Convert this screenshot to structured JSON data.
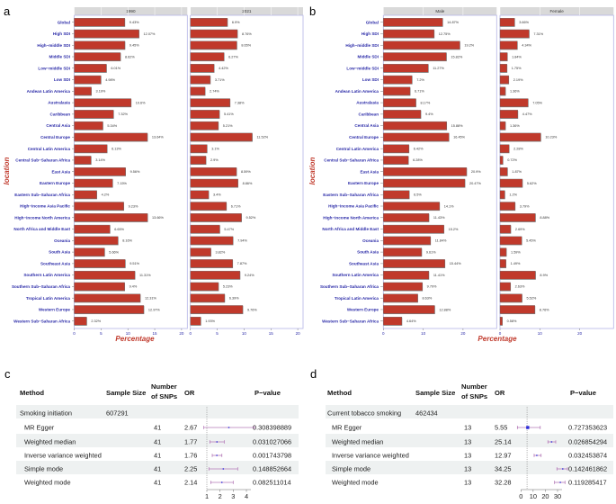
{
  "chart_data": [
    {
      "panel": "a",
      "type": "bar",
      "orientation": "horizontal",
      "facets": [
        "1990",
        "2021"
      ],
      "xlabel": "Percentage",
      "ylabel": "location",
      "xlim": [
        0,
        21
      ],
      "xticks": [
        0,
        5,
        10,
        15,
        20
      ],
      "bar_color": "#c0392b",
      "categories": [
        "Global",
        "High SDI",
        "High−middle SDI",
        "Middle SDI",
        "Low−middle SDI",
        "Low SDI",
        "Andean Latin America",
        "Australasia",
        "Caribbean",
        "Central Asia",
        "Central Europe",
        "Central Latin America",
        "Central Sub−Saharan Africa",
        "East Asia",
        "Eastern Europe",
        "Eastern Sub−Saharan Africa",
        "High−income Asia Pacific",
        "High−income North America",
        "North Africa and Middle East",
        "Oceania",
        "South Asia",
        "Southeast Asia",
        "Southern Latin America",
        "Southern Sub−Saharan Africa",
        "Tropical Latin America",
        "Western Europe",
        "Western Sub−Saharan Africa"
      ],
      "series": [
        {
          "name": "1990",
          "values": [
            9.43,
            12.07,
            9.45,
            8.62,
            6.01,
            4.98,
            3.19,
            10.6,
            7.32,
            5.34,
            13.64,
            6.13,
            3.14,
            9.56,
            7.15,
            4.2,
            9.23,
            13.66,
            6.65,
            8.16,
            5.66,
            9.51,
            11.31,
            9.4,
            12.31,
            12.97,
            2.32
          ]
        },
        {
          "name": "2021",
          "values": [
            6.9,
            8.76,
            8.65,
            6.27,
            4.42,
            3.71,
            2.74,
            7.38,
            5.41,
            5.21,
            11.52,
            3.1,
            2.9,
            8.59,
            8.86,
            3.4,
            6.71,
            9.52,
            5.47,
            7.94,
            3.82,
            7.87,
            9.24,
            5.23,
            6.39,
            9.76,
            1.93
          ]
        }
      ]
    },
    {
      "panel": "b",
      "type": "bar",
      "orientation": "horizontal",
      "facets": [
        "Male",
        "Female"
      ],
      "xlabel": "Percentage",
      "ylabel": "location",
      "xlim": [
        0,
        28.5
      ],
      "xticks": [
        0,
        10,
        20
      ],
      "bar_color": "#c0392b",
      "categories": [
        "Global",
        "High SDI",
        "High−middle SDI",
        "Middle SDI",
        "Low−middle SDI",
        "Low SDI",
        "Andean Latin America",
        "Australasia",
        "Caribbean",
        "Central Asia",
        "Central Europe",
        "Central Latin America",
        "Central Sub−Saharan Africa",
        "East Asia",
        "Eastern Europe",
        "Eastern Sub−Saharan Africa",
        "High−income Asia Pacific",
        "High−income North America",
        "North Africa and Middle East",
        "Oceania",
        "South Asia",
        "Southeast Asia",
        "Southern Latin America",
        "Southern Sub−Saharan Africa",
        "Tropical Latin America",
        "Western Europe",
        "Western Sub−Saharan Africa"
      ],
      "series": [
        {
          "name": "Male",
          "values": [
            14.87,
            12.75,
            19.2,
            15.82,
            11.27,
            7.2,
            6.71,
            8.17,
            9.4,
            15.88,
            16.45,
            6.42,
            6.28,
            20.9,
            20.47,
            6.5,
            14.1,
            11.43,
            15.2,
            11.84,
            9.61,
            15.44,
            11.41,
            9.79,
            8.63,
            12.88,
            4.64
          ]
        },
        {
          "name": "Female",
          "values": [
            3.66,
            7.31,
            4.34,
            1.84,
            1.75,
            2.19,
            1.36,
            7.05,
            4.47,
            1.36,
            10.23,
            2.28,
            0.72,
            1.87,
            5.62,
            1.2,
            3.79,
            8.88,
            2.69,
            5.45,
            1.59,
            1.49,
            8.9,
            2.63,
            5.52,
            8.76,
            0.58
          ]
        }
      ]
    },
    {
      "panel": "c",
      "type": "table",
      "headers": [
        "Method",
        "Sample Size",
        "Number\nof SNPs",
        "OR",
        "P−value"
      ],
      "exposure": {
        "label": "Smoking initiation",
        "sample_size": "607291"
      },
      "rows": [
        {
          "method": "MR Egger",
          "snps": "41",
          "or": "2.67",
          "or_value": 2.67,
          "ci": [
            0.77,
            4.6
          ],
          "p": "0.308398889"
        },
        {
          "method": "Weighted median",
          "snps": "41",
          "or": "1.77",
          "or_value": 1.77,
          "ci": [
            1.23,
            2.32
          ],
          "p": "0.031027066"
        },
        {
          "method": "Inverse variance weighted",
          "snps": "41",
          "or": "1.76",
          "or_value": 1.76,
          "ci": [
            1.41,
            2.14
          ],
          "p": "0.001743798"
        },
        {
          "method": "Simple mode",
          "snps": "41",
          "or": "2.25",
          "or_value": 2.25,
          "ci": [
            1.16,
            3.34
          ],
          "p": "0.148852664"
        },
        {
          "method": "Weighted mode",
          "snps": "41",
          "or": "2.14",
          "or_value": 2.14,
          "ci": [
            1.3,
            3.0
          ],
          "p": "0.082511014"
        }
      ],
      "ref_line": 1,
      "xticks": [
        1,
        2,
        3,
        4
      ],
      "xlim": [
        0.75,
        4.7
      ],
      "ci_color": "#b57ab8",
      "point_color": "#2b2bd8"
    },
    {
      "panel": "d",
      "type": "table",
      "headers": [
        "Method",
        "Sample Size",
        "Number\nof SNPs",
        "OR",
        "P−value"
      ],
      "exposure": {
        "label": "Current tobacco smoking",
        "sample_size": "462434"
      },
      "rows": [
        {
          "method": "MR Egger",
          "snps": "13",
          "or": "5.55",
          "or_value": 5.55,
          "ci": [
            -2.9,
            15.8
          ],
          "p": "0.727353623"
        },
        {
          "method": "Weighted median",
          "snps": "13",
          "or": "25.14",
          "or_value": 25.14,
          "ci": [
            22.1,
            28.5
          ],
          "p": "0.026854294"
        },
        {
          "method": "Inverse variance weighted",
          "snps": "13",
          "or": "12.97",
          "or_value": 12.97,
          "ci": [
            10.8,
            16.5
          ],
          "p": "0.032453874"
        },
        {
          "method": "Simple mode",
          "snps": "13",
          "or": "34.25",
          "or_value": 34.25,
          "ci": [
            29.5,
            38.1
          ],
          "p": "0.142461862"
        },
        {
          "method": "Weighted mode",
          "snps": "13",
          "or": "32.28",
          "or_value": 32.28,
          "ci": [
            27.5,
            36.1
          ],
          "p": "0.119285417"
        }
      ],
      "ref_line": 5,
      "xticks": [
        0,
        10,
        20,
        30
      ],
      "xlim": [
        -3,
        38.5
      ],
      "ci_color": "#b57ab8",
      "point_color": "#2b2bd8"
    }
  ]
}
